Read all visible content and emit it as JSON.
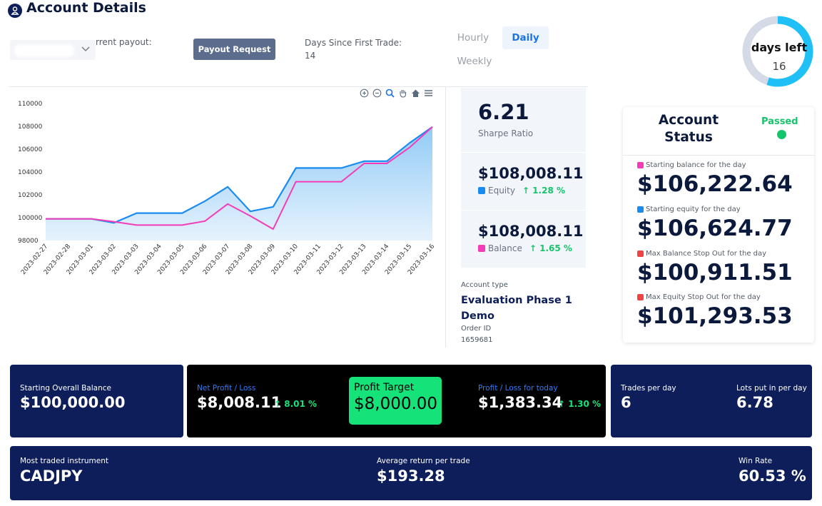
{
  "header": {
    "title": "Account Details",
    "payout_label": "rrent payout:",
    "payout_button": "Payout Request",
    "days_first_trade_label": "Days Since First Trade:",
    "days_first_trade_value": "14"
  },
  "tabs": [
    {
      "label": "Hourly",
      "active": false
    },
    {
      "label": "Daily",
      "active": true
    },
    {
      "label": "Weekly",
      "active": false
    }
  ],
  "days_left": {
    "label": "days left",
    "value": "16",
    "progress_fraction": 0.55,
    "ring_color": "#1ec0f5",
    "track_color": "#d4dbe6"
  },
  "toolbar_icons": [
    "zoom-in-icon",
    "zoom-out-icon",
    "magnify-icon",
    "pan-hand-icon",
    "home-icon",
    "menu-icon"
  ],
  "chart_data": {
    "type": "area",
    "categories": [
      "2023-02-27",
      "2023-02-28",
      "2023-03-01",
      "2023-03-02",
      "2023-03-03",
      "2023-03-04",
      "2023-03-05",
      "2023-03-06",
      "2023-03-07",
      "2023-03-08",
      "2023-03-09",
      "2023-03-10",
      "2023-03-11",
      "2023-03-12",
      "2023-03-13",
      "2023-03-14",
      "2023-03-15",
      "2023-03-16"
    ],
    "y_ticks": [
      "110000",
      "108000",
      "106000",
      "104000",
      "102000",
      "100000",
      "98000"
    ],
    "ylim": [
      98000,
      110000
    ],
    "series": [
      {
        "key": "equity",
        "color": "#1a8cf0",
        "values": [
          99900,
          99900,
          99900,
          99550,
          100400,
          100400,
          100400,
          101450,
          102700,
          100550,
          100950,
          104350,
          104350,
          104350,
          104950,
          104950,
          106550,
          107950
        ]
      },
      {
        "key": "balance",
        "color": "#f43cb8",
        "values": [
          99900,
          99900,
          99900,
          99650,
          99350,
          99350,
          99350,
          99700,
          101200,
          100150,
          99000,
          103150,
          103150,
          103150,
          104750,
          104750,
          106150,
          107950
        ]
      }
    ],
    "fill_color": "#9fd1f7"
  },
  "metrics": {
    "sharpe_value": "6.21",
    "sharpe_label": "Sharpe Ratio",
    "equity_value": "$108,008.11",
    "equity_label": "Equity",
    "equity_pct": "↑ 1.28 %",
    "equity_color": "#1a8cf0",
    "balance_value": "$108,008.11",
    "balance_label": "Balance",
    "balance_pct": "↑ 1.65 %",
    "balance_color": "#f43cb8"
  },
  "account_info": {
    "type_label": "Account type",
    "type_value": "Evaluation Phase 1 Demo",
    "order_label": "Order ID",
    "order_value": "1659681"
  },
  "account_status": {
    "title": "Account Status",
    "status": "Passed",
    "items": [
      {
        "label": "Starting balance for the day",
        "value": "$106,222.64",
        "color": "#f43cb8"
      },
      {
        "label": "Starting equity for the day",
        "value": "$106,624.77",
        "color": "#1a8cf0"
      },
      {
        "label": "Max Balance Stop Out for the day",
        "value": "$100,911.51",
        "color": "#ef4444"
      },
      {
        "label": "Max Equity Stop Out for the day",
        "value": "$101,293.53",
        "color": "#ef4444"
      }
    ]
  },
  "summary": {
    "starting_label": "Starting Overall Balance",
    "starting_value": "$100,000.00",
    "net_label": "Net Profit / Loss",
    "net_value": "$8,008.11",
    "net_pct": "↑ 8.01 %",
    "target_label": "Profit Target",
    "target_value": "$8,000.00",
    "today_label": "Profit / Loss for today",
    "today_value": "$1,383.34",
    "today_pct": "↑ 1.30 %",
    "trades_label": "Trades per day",
    "trades_value": "6",
    "lots_label": "Lots put in per day",
    "lots_value": "6.78",
    "instrument_label": "Most traded instrument",
    "instrument_value": "CADJPY",
    "avg_return_label": "Average return per trade",
    "avg_return_value": "$193.28",
    "win_rate_label": "Win Rate",
    "win_rate_value": "60.53 %"
  }
}
